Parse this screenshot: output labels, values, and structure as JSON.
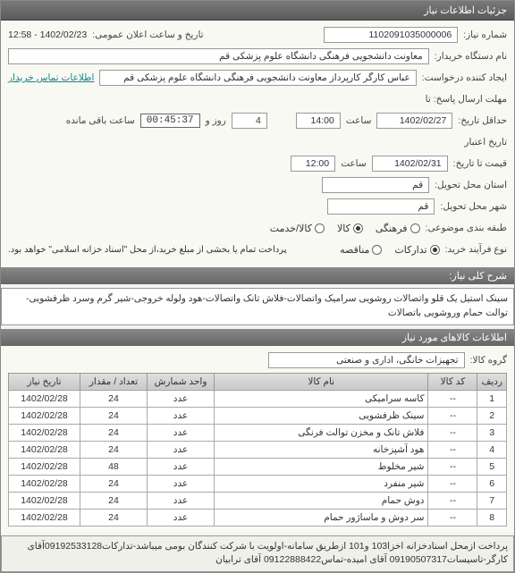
{
  "panel": {
    "title": "جزئیات اطلاعات نیاز"
  },
  "fields": {
    "need_number_label": "شماره نیاز:",
    "need_number": "1102091035000006",
    "announce_label": "تاریخ و ساعت اعلان عمومی:",
    "announce_value": "1402/02/23 - 12:58",
    "buyer_org_label": "نام دستگاه خریدار:",
    "buyer_org": "معاونت دانشجویی فرهنگی دانشگاه علوم پزشکی قم",
    "creator_label": "ایجاد کننده درخواست:",
    "creator": "عباس کارگر کارپرداز معاونت دانشجویی فرهنگی دانشگاه علوم پزشکی قم",
    "contact_link": "اطلاعات تماس خریدار",
    "deadline_label": "حداقل تاریخ:",
    "deadline_date": "1402/02/27",
    "time_label": "ساعت",
    "deadline_time": "14:00",
    "days_count": "4",
    "days_label": "روز و",
    "remaining_timer": "00:45:37",
    "remaining_label": "ساعت باقی مانده",
    "reply_deadline_label": "مهلت ارسال پاسخ: تا",
    "validity_label": "تاریخ اعتبار",
    "validity_sub": "قیمت تا تاریخ:",
    "validity_date": "1402/02/31",
    "validity_time": "12:00",
    "province_label": "استان محل تحویل:",
    "province": "قم",
    "city_label": "شهر محل تحویل:",
    "city": "قم",
    "budget_label": "طبقه بندی موضوعی:",
    "budget_opts": [
      "فرهنگی",
      "کالا",
      "کالا/خدمت"
    ],
    "budget_checked": 1,
    "process_label": "نوع فرآیند خرید:",
    "process_opts": [
      "تدارکات",
      "مناقصه"
    ],
    "process_checked": 0,
    "note": "پرداخت تمام یا بخشی از مبلغ خرید،از محل \"اسناد خزانه اسلامی\" خواهد بود."
  },
  "desc_section": {
    "header": "شرح کلی نیاز:",
    "text": "سینک استیل یک قلو واتصالات روشویی سرامیک واتصالات-فلاش تانک واتصالات-هود ولوله خروجی-شیر گرم وسرد ظرفشویی-توالت حمام  وروشویی باتصالات"
  },
  "items_section": {
    "header": "اطلاعات کالاهای مورد نیاز",
    "group_label": "گروه کالا:",
    "group_value": "تجهیزات خانگی، اداری و صنعتی",
    "phone_watermark": "۰۲۱ - ۸۸۳۴۹۶",
    "columns": [
      "ردیف",
      "کد کالا",
      "نام کالا",
      "واحد شمارش",
      "تعداد / مقدار",
      "تاریخ نیاز"
    ],
    "rows": [
      [
        "1",
        "--",
        "کاسه سرامیکی",
        "عدد",
        "24",
        "1402/02/28"
      ],
      [
        "2",
        "--",
        "سینک ظرفشویی",
        "عدد",
        "24",
        "1402/02/28"
      ],
      [
        "3",
        "--",
        "فلاش تانک و مخزن توالت فرنگی",
        "عدد",
        "24",
        "1402/02/28"
      ],
      [
        "4",
        "--",
        "هود آشپزخانه",
        "عدد",
        "24",
        "1402/02/28"
      ],
      [
        "5",
        "--",
        "شیر مخلوط",
        "عدد",
        "48",
        "1402/02/28"
      ],
      [
        "6",
        "--",
        "شیر منفرد",
        "عدد",
        "24",
        "1402/02/28"
      ],
      [
        "7",
        "--",
        "دوش حمام",
        "عدد",
        "24",
        "1402/02/28"
      ],
      [
        "8",
        "--",
        "سر دوش و ماساژور حمام",
        "عدد",
        "24",
        "1402/02/28"
      ]
    ]
  },
  "footer": {
    "text": "پرداخت ازمحل اسنادخزانه اخزا103 و101 ازطریق سامانه-اولویت با شرکت کنندگان بومی میباشد-تدارکات09192533128آقای کارگر-تاسیسات09190507317 آقای امیده-تماس09122888422 آقای ترابیان"
  },
  "colors": {
    "header_bg": "#6a6a6a",
    "link": "#0a8a8a",
    "border": "#999999"
  }
}
